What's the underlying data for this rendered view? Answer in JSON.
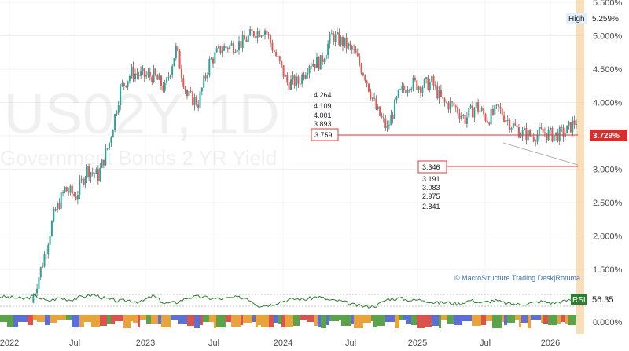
{
  "watermark": {
    "ticker": "US02Y, 1D",
    "name": "Government Bonds 2 YR Yield"
  },
  "credit": "© MacroStructure Trading Desk|Rotuma",
  "badges": {
    "high_label": "High",
    "high_value": "5.259%",
    "last_value": "3.729%",
    "rsi_label": "RSI",
    "rsi_value": "56.35"
  },
  "fib_upper": {
    "levels": [
      "4.264",
      "4.109",
      "4.001",
      "3.893"
    ],
    "boxed": "3.759"
  },
  "fib_lower": {
    "boxed": "3.346",
    "levels": [
      "3.191",
      "3.083",
      "2.975",
      "2.841"
    ]
  },
  "colors": {
    "up": "#26a69a",
    "down": "#ef5350",
    "rsi_line": "#2e7d32",
    "highlight_band": "#f7c88c",
    "resistance_line": "#e53935",
    "badge_last": "#d32f2f"
  },
  "chart_data": {
    "type": "line",
    "title": "",
    "y_axis": {
      "ticks": [
        "5.500%",
        "5.000%",
        "4.500%",
        "4.000%",
        "3.500%",
        "3.000%",
        "2.500%",
        "2.000%",
        "1.500%"
      ],
      "range": [
        1.5,
        5.5
      ],
      "unit": "%"
    },
    "x_axis": {
      "ticks": [
        "2022",
        "Jul",
        "2023",
        "Jul",
        "2024",
        "Jul",
        "2025",
        "Jul",
        "2026"
      ]
    },
    "series": [
      {
        "x": [
          "2022-01",
          "2022-02",
          "2022-03",
          "2022-04",
          "2022-05",
          "2022-06",
          "2022-07",
          "2022-08",
          "2022-09",
          "2022-10",
          "2022-11",
          "2022-12",
          "2023-01",
          "2023-02",
          "2023-03",
          "2023-04",
          "2023-05",
          "2023-06",
          "2023-07",
          "2023-08",
          "2023-09",
          "2023-10",
          "2023-11",
          "2023-12",
          "2024-01",
          "2024-02",
          "2024-03",
          "2024-04",
          "2024-05",
          "2024-06",
          "2024-07",
          "2024-08",
          "2024-09",
          "2024-10",
          "2024-11",
          "2024-12",
          "2025-01",
          "2025-02",
          "2025-03",
          "2025-04",
          "2025-05",
          "2025-06",
          "2025-07",
          "2025-08",
          "2025-09",
          "2025-10",
          "2025-11",
          "2025-12",
          "2026-01",
          "2026-02"
        ],
        "values": [
          1.0,
          1.6,
          2.3,
          2.7,
          2.6,
          3.0,
          2.9,
          3.4,
          4.2,
          4.45,
          4.4,
          4.4,
          4.2,
          4.8,
          4.1,
          4.0,
          4.6,
          4.8,
          4.85,
          4.9,
          5.05,
          5.1,
          4.7,
          4.3,
          4.3,
          4.6,
          4.6,
          5.0,
          4.9,
          4.75,
          4.4,
          3.9,
          3.6,
          4.1,
          4.3,
          4.25,
          4.3,
          4.0,
          3.95,
          3.75,
          3.95,
          3.75,
          3.9,
          3.7,
          3.55,
          3.5,
          3.55,
          3.5,
          3.55,
          3.73
        ]
      }
    ],
    "high": 5.259,
    "last": 3.729,
    "rsi": {
      "name": "RSI",
      "last": 56.35,
      "values": [
        60,
        58,
        55,
        62,
        50,
        57,
        53,
        60,
        64,
        55,
        50,
        52,
        48,
        62,
        45,
        47,
        58,
        60,
        56,
        55,
        58,
        57,
        40,
        42,
        50,
        55,
        54,
        60,
        52,
        50,
        42,
        38,
        40,
        55,
        56,
        52,
        53,
        46,
        47,
        44,
        52,
        46,
        52,
        45,
        43,
        45,
        49,
        46,
        50,
        56.35
      ]
    },
    "bottom_pane_tick": "0.000%"
  }
}
